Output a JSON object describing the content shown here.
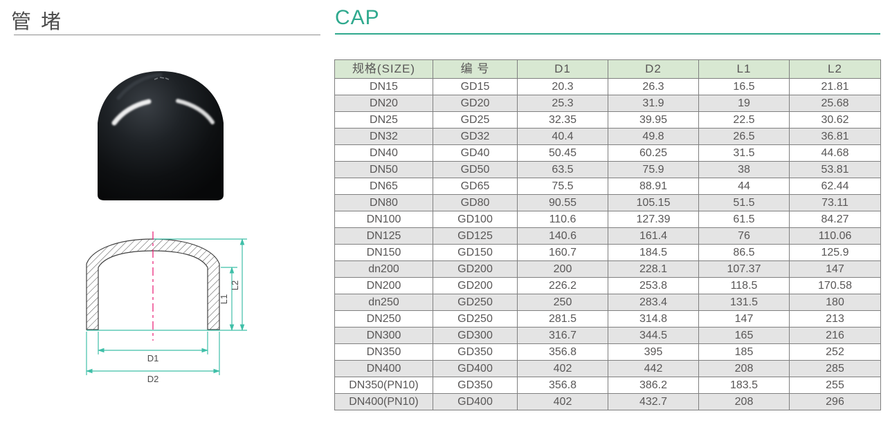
{
  "page": {
    "title_zh": "管 堵",
    "title_en": "CAP"
  },
  "colors": {
    "accent": "#2fa98e",
    "header_bg": "#d8e8d2",
    "row_alt": "#e4e4e4",
    "border": "#7f7f7f",
    "text": "#595757",
    "dim_line": "#3fbfa8",
    "centerline": "#ec2a7c"
  },
  "drawing": {
    "labels": {
      "d1": "D1",
      "d2": "D2",
      "l1": "L1",
      "l2": "L2"
    }
  },
  "table": {
    "headers": [
      "规格(SIZE)",
      "编 号",
      "D1",
      "D2",
      "L1",
      "L2"
    ],
    "rows": [
      [
        "DN15",
        "GD15",
        "20.3",
        "26.3",
        "16.5",
        "21.81"
      ],
      [
        "DN20",
        "GD20",
        "25.3",
        "31.9",
        "19",
        "25.68"
      ],
      [
        "DN25",
        "GD25",
        "32.35",
        "39.95",
        "22.5",
        "30.62"
      ],
      [
        "DN32",
        "GD32",
        "40.4",
        "49.8",
        "26.5",
        "36.81"
      ],
      [
        "DN40",
        "GD40",
        "50.45",
        "60.25",
        "31.5",
        "44.68"
      ],
      [
        "DN50",
        "GD50",
        "63.5",
        "75.9",
        "38",
        "53.81"
      ],
      [
        "DN65",
        "GD65",
        "75.5",
        "88.91",
        "44",
        "62.44"
      ],
      [
        "DN80",
        "GD80",
        "90.55",
        "105.15",
        "51.5",
        "73.11"
      ],
      [
        "DN100",
        "GD100",
        "110.6",
        "127.39",
        "61.5",
        "84.27"
      ],
      [
        "DN125",
        "GD125",
        "140.6",
        "161.4",
        "76",
        "110.06"
      ],
      [
        "DN150",
        "GD150",
        "160.7",
        "184.5",
        "86.5",
        "125.9"
      ],
      [
        "dn200",
        "GD200",
        "200",
        "228.1",
        "107.37",
        "147"
      ],
      [
        "DN200",
        "GD200",
        "226.2",
        "253.8",
        "118.5",
        "170.58"
      ],
      [
        "dn250",
        "GD250",
        "250",
        "283.4",
        "131.5",
        "180"
      ],
      [
        "DN250",
        "GD250",
        "281.5",
        "314.8",
        "147",
        "213"
      ],
      [
        "DN300",
        "GD300",
        "316.7",
        "344.5",
        "165",
        "216"
      ],
      [
        "DN350",
        "GD350",
        "356.8",
        "395",
        "185",
        "252"
      ],
      [
        "DN400",
        "GD400",
        "402",
        "442",
        "208",
        "285"
      ],
      [
        "DN350(PN10)",
        "GD350",
        "356.8",
        "386.2",
        "183.5",
        "255"
      ],
      [
        "DN400(PN10)",
        "GD400",
        "402",
        "432.7",
        "208",
        "296"
      ]
    ]
  }
}
